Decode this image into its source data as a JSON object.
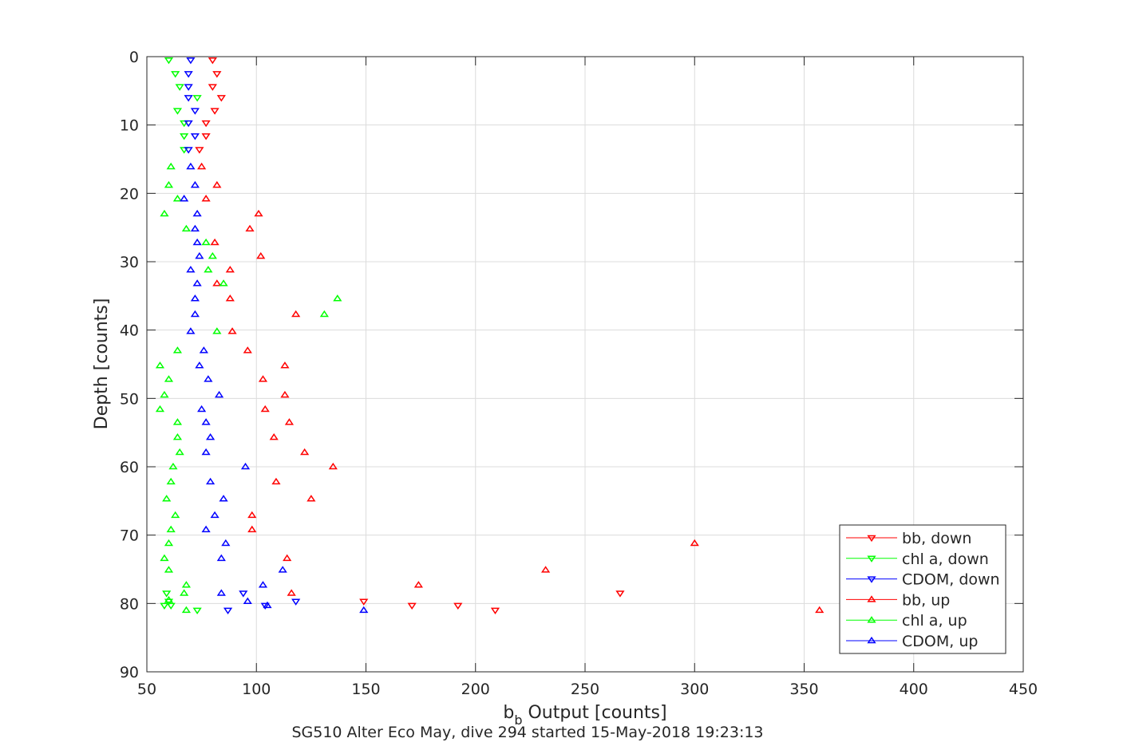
{
  "chart_data": {
    "type": "scatter",
    "xlabel": "b",
    "xlabel_sub": "b",
    "xlabel_rest": " Output [counts]",
    "ylabel": "Depth [counts]",
    "caption": "SG510 Alter Eco May, dive 294 started 15-May-2018 19:23:13",
    "xlim": [
      50,
      450
    ],
    "ylim": [
      0,
      90
    ],
    "y_reversed": true,
    "grid": true,
    "legend_placement": "bottom-right",
    "xticks": [
      50,
      100,
      150,
      200,
      250,
      300,
      350,
      400,
      450
    ],
    "yticks": [
      0,
      10,
      20,
      30,
      40,
      50,
      60,
      70,
      80,
      90
    ],
    "series": [
      {
        "name": "bb, down",
        "color": "#ff0000",
        "marker": "triangle-down",
        "points": [
          [
            80,
            0.5
          ],
          [
            82,
            2.5
          ],
          [
            80,
            4.4
          ],
          [
            84,
            6.0
          ],
          [
            81,
            7.9
          ],
          [
            77,
            9.7
          ],
          [
            77,
            11.6
          ],
          [
            74,
            13.6
          ],
          [
            149,
            79.7
          ],
          [
            171,
            80.3
          ],
          [
            192,
            80.3
          ],
          [
            209,
            81.0
          ],
          [
            266,
            78.5
          ]
        ]
      },
      {
        "name": "chl a, down",
        "color": "#00ff00",
        "marker": "triangle-down",
        "points": [
          [
            60,
            0.5
          ],
          [
            63,
            2.5
          ],
          [
            65,
            4.4
          ],
          [
            73,
            6.0
          ],
          [
            64,
            7.9
          ],
          [
            67,
            9.7
          ],
          [
            67,
            11.6
          ],
          [
            67,
            13.6
          ],
          [
            59,
            78.5
          ],
          [
            60,
            79.7
          ],
          [
            61,
            80.3
          ],
          [
            58,
            80.3
          ],
          [
            73,
            81.0
          ]
        ]
      },
      {
        "name": "CDOM, down",
        "color": "#0000ff",
        "marker": "triangle-down",
        "points": [
          [
            70,
            0.5
          ],
          [
            69,
            2.5
          ],
          [
            69,
            4.4
          ],
          [
            69,
            6.0
          ],
          [
            72,
            7.9
          ],
          [
            69,
            9.7
          ],
          [
            72,
            11.6
          ],
          [
            69,
            13.6
          ],
          [
            94,
            78.5
          ],
          [
            104,
            80.3
          ],
          [
            87,
            81.0
          ],
          [
            118,
            79.7
          ]
        ]
      },
      {
        "name": "bb, up",
        "color": "#ff0000",
        "marker": "triangle-up",
        "points": [
          [
            75,
            16.1
          ],
          [
            82,
            18.8
          ],
          [
            77,
            20.8
          ],
          [
            101,
            23.0
          ],
          [
            97,
            25.2
          ],
          [
            81,
            27.2
          ],
          [
            102,
            29.2
          ],
          [
            88,
            31.2
          ],
          [
            82,
            33.2
          ],
          [
            88,
            35.4
          ],
          [
            118,
            37.7
          ],
          [
            89,
            40.2
          ],
          [
            96,
            43.0
          ],
          [
            113,
            45.2
          ],
          [
            103,
            47.2
          ],
          [
            113,
            49.5
          ],
          [
            104,
            51.6
          ],
          [
            115,
            53.5
          ],
          [
            108,
            55.7
          ],
          [
            122,
            57.9
          ],
          [
            135,
            60.0
          ],
          [
            109,
            62.2
          ],
          [
            125,
            64.7
          ],
          [
            98,
            67.1
          ],
          [
            98,
            69.2
          ],
          [
            300,
            71.2
          ],
          [
            114,
            73.4
          ],
          [
            232,
            75.1
          ],
          [
            174,
            77.3
          ],
          [
            116,
            78.5
          ],
          [
            357,
            81.0
          ]
        ]
      },
      {
        "name": "chl a, up",
        "color": "#00ff00",
        "marker": "triangle-up",
        "points": [
          [
            61,
            16.1
          ],
          [
            60,
            18.8
          ],
          [
            64,
            20.8
          ],
          [
            58,
            23.0
          ],
          [
            68,
            25.2
          ],
          [
            77,
            27.2
          ],
          [
            80,
            29.2
          ],
          [
            78,
            31.2
          ],
          [
            85,
            33.2
          ],
          [
            137,
            35.4
          ],
          [
            131,
            37.7
          ],
          [
            82,
            40.2
          ],
          [
            64,
            43.0
          ],
          [
            56,
            45.2
          ],
          [
            60,
            47.2
          ],
          [
            58,
            49.5
          ],
          [
            56,
            51.6
          ],
          [
            64,
            53.5
          ],
          [
            64,
            55.7
          ],
          [
            65,
            57.9
          ],
          [
            62,
            60.0
          ],
          [
            61,
            62.2
          ],
          [
            59,
            64.7
          ],
          [
            63,
            67.1
          ],
          [
            61,
            69.2
          ],
          [
            60,
            71.2
          ],
          [
            58,
            73.4
          ],
          [
            60,
            75.1
          ],
          [
            68,
            77.3
          ],
          [
            67,
            78.5
          ],
          [
            60,
            79.5
          ],
          [
            68,
            81.0
          ]
        ]
      },
      {
        "name": "CDOM, up",
        "color": "#0000ff",
        "marker": "triangle-up",
        "points": [
          [
            70,
            16.1
          ],
          [
            72,
            18.8
          ],
          [
            67,
            20.8
          ],
          [
            73,
            23.0
          ],
          [
            72,
            25.2
          ],
          [
            73,
            27.2
          ],
          [
            74,
            29.2
          ],
          [
            70,
            31.2
          ],
          [
            73,
            33.2
          ],
          [
            72,
            35.4
          ],
          [
            72,
            37.7
          ],
          [
            70,
            40.2
          ],
          [
            76,
            43.0
          ],
          [
            74,
            45.2
          ],
          [
            78,
            47.2
          ],
          [
            83,
            49.5
          ],
          [
            75,
            51.6
          ],
          [
            77,
            53.5
          ],
          [
            79,
            55.7
          ],
          [
            77,
            57.9
          ],
          [
            95,
            60.0
          ],
          [
            79,
            62.2
          ],
          [
            85,
            64.7
          ],
          [
            81,
            67.1
          ],
          [
            77,
            69.2
          ],
          [
            86,
            71.2
          ],
          [
            84,
            73.4
          ],
          [
            112,
            75.1
          ],
          [
            103,
            77.3
          ],
          [
            84,
            78.5
          ],
          [
            96,
            79.7
          ],
          [
            105,
            80.3
          ],
          [
            149,
            81.0
          ]
        ]
      }
    ]
  }
}
